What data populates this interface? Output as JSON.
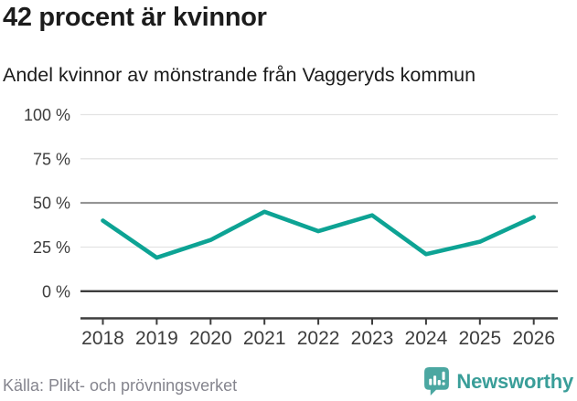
{
  "header": {
    "title": "42 procent är kvinnor",
    "subtitle": "Andel kvinnor av mönstrande från Vaggeryds kommun"
  },
  "chart_data": {
    "type": "line",
    "title": "42 procent är kvinnor",
    "subtitle": "Andel kvinnor av mönstrande från Vaggeryds kommun",
    "categories": [
      "2018",
      "2019",
      "2020",
      "2021",
      "2022",
      "2023",
      "2024",
      "2025",
      "2026"
    ],
    "series": [
      {
        "name": "Andel kvinnor av mönstrande",
        "values": [
          40,
          19,
          29,
          45,
          34,
          43,
          21,
          28,
          42
        ]
      }
    ],
    "unit": "%",
    "ylim": [
      0,
      100
    ],
    "yticks": [
      0,
      25,
      50,
      75,
      100
    ],
    "ytick_suffix": " %",
    "grid": true,
    "legend": "none",
    "emphasized_ytick": 50,
    "baseline_ytick": 0
  },
  "footer": {
    "source": "Källa: Plikt- och prövningsverket",
    "brand": "Newsworthy"
  },
  "colors": {
    "line": "#0da394",
    "grid_light": "#e3e3e3",
    "grid_mid": "#8c8c8c",
    "axis": "#3d3d3d",
    "title_text": "#1c1c1c",
    "tick_text": "#3d3d3d",
    "source_text": "#85858e",
    "brand_text": "#3a9e99",
    "logo_fill": "#4ba7a1"
  },
  "icons": {
    "logo": "newsworthy-bubble-chart-icon"
  }
}
